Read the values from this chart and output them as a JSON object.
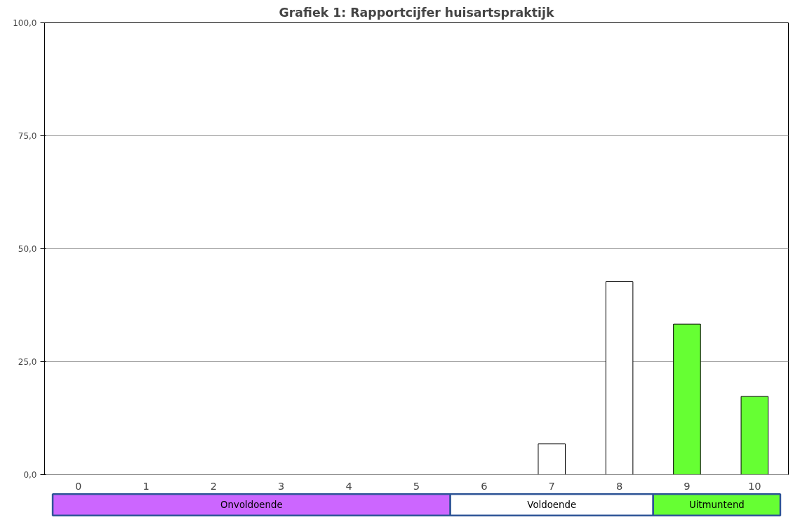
{
  "chart_data": [
    {
      "type": "bar",
      "title": "Grafiek 1: Rapportcijfer huisartspraktijk",
      "categories": [
        "0",
        "1",
        "2",
        "3",
        "4",
        "5",
        "6",
        "7",
        "8",
        "9",
        "10"
      ],
      "values": [
        0,
        0,
        0,
        0,
        0,
        0,
        0,
        6.8,
        42.7,
        33.3,
        17.3
      ],
      "colors": [
        "#ffffff",
        "#ffffff",
        "#ffffff",
        "#ffffff",
        "#ffffff",
        "#ffffff",
        "#ffffff",
        "#ffffff",
        "#ffffff",
        "#66ff33",
        "#66ff33"
      ],
      "ylim": [
        0,
        100
      ],
      "yticks": [
        {
          "value": 0,
          "label": "0,0"
        },
        {
          "value": 25,
          "label": "25,0"
        },
        {
          "value": 50,
          "label": "50,0"
        },
        {
          "value": 75,
          "label": "75,0"
        },
        {
          "value": 100,
          "label": "100,0"
        }
      ],
      "grid": "y"
    },
    {
      "type": "other",
      "categories": [
        "Onvoldoende",
        "Voldoende",
        "Uitmuntend"
      ],
      "colors": [
        "#cc66ff",
        "#ffffff",
        "#66ff33"
      ]
    }
  ]
}
